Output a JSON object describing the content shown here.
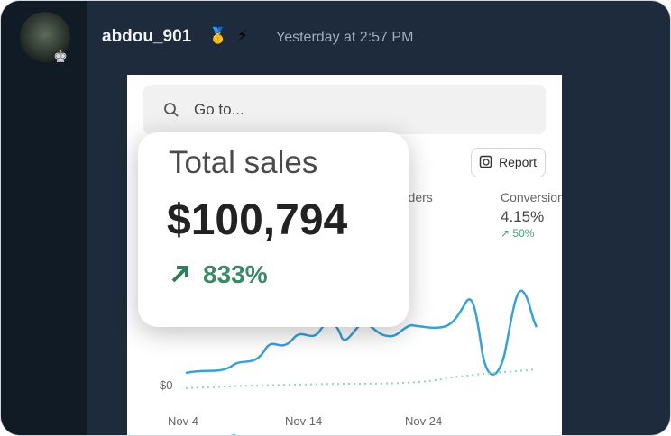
{
  "message": {
    "username": "abdou_901",
    "badges": [
      "🥇",
      "⚡"
    ],
    "timestamp": "Yesterday at 2:57 PM"
  },
  "embed": {
    "search_placeholder": "Go to...",
    "report_button": "Report",
    "popup": {
      "title": "Total sales",
      "value": "$100,794",
      "change": "833%"
    },
    "metrics": [
      {
        "label": "Orders"
      },
      {
        "label": "Conversion",
        "value": "4.15%",
        "change": "50%"
      }
    ],
    "chart": {
      "y_label": "$0",
      "x_labels": [
        "Nov 4",
        "Nov 14",
        "Nov 24"
      ]
    }
  }
}
